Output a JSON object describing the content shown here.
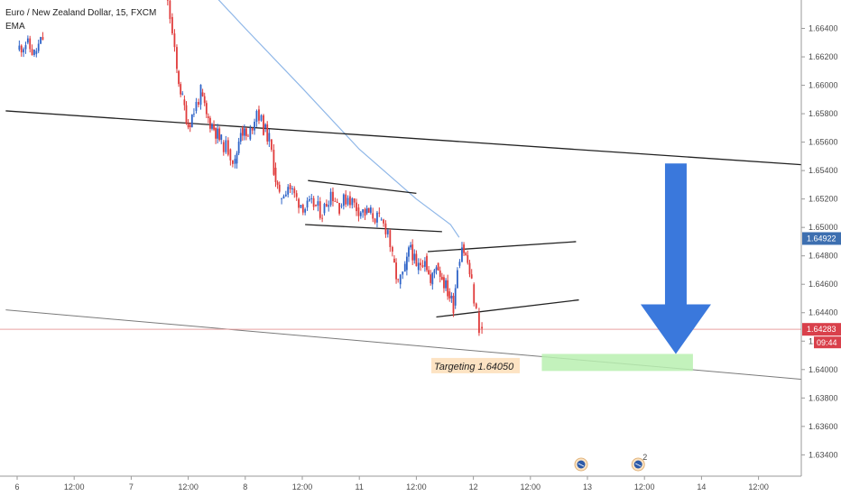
{
  "header": {
    "symbol_title": "Euro / New Zealand Dollar, 15, FXCM",
    "indicator_label": "EMA"
  },
  "colors": {
    "bull": "#2f64c8",
    "bear": "#e03b3b",
    "ema": "#8fb7e8",
    "price_badge": "#d9404b",
    "ema_badge": "#3d6fb0",
    "arrow": "#3a78dc",
    "target_zone": "#b8f0b0",
    "target_label_bg": "#fde3c3"
  },
  "annotation": {
    "target_label": "Targeting 1.64050"
  },
  "chart_data": {
    "type": "candlestick",
    "title": "Euro / New Zealand Dollar, 15, FXCM",
    "ylim": [
      1.6325,
      1.666
    ],
    "y_ticks": [
      "1.66400",
      "1.66200",
      "1.66000",
      "1.65800",
      "1.65600",
      "1.65400",
      "1.65200",
      "1.65000",
      "1.64800",
      "1.64600",
      "1.64400",
      "1.64200",
      "1.64000",
      "1.63800",
      "1.63600",
      "1.63400"
    ],
    "x_ticks": [
      "6",
      "12:00",
      "7",
      "12:00",
      "8",
      "12:00",
      "11",
      "12:00",
      "12",
      "12:00",
      "13",
      "12:00",
      "14",
      "12:00"
    ],
    "price_badge": {
      "value": 1.64283,
      "label": "1.64283",
      "countdown": "09:44"
    },
    "ema_badge": {
      "value": 1.64922,
      "label": "1.64922"
    },
    "ema_points": [
      [
        3,
        1.6683
      ],
      [
        4,
        1.664
      ],
      [
        5,
        1.6598
      ],
      [
        6,
        1.6555
      ],
      [
        7,
        1.652
      ],
      [
        7.6,
        1.6502
      ],
      [
        7.75,
        1.6493
      ]
    ],
    "close_path": [
      [
        0,
        1.6625
      ],
      [
        0.15,
        1.663
      ],
      [
        0.3,
        1.6622
      ],
      [
        0.45,
        1.6633
      ],
      [
        2.6,
        1.6665
      ],
      [
        2.68,
        1.6648
      ],
      [
        2.8,
        1.661
      ],
      [
        2.9,
        1.659
      ],
      [
        3.0,
        1.6572
      ],
      [
        3.1,
        1.6582
      ],
      [
        3.22,
        1.6595
      ],
      [
        3.32,
        1.6578
      ],
      [
        3.45,
        1.657
      ],
      [
        3.58,
        1.656
      ],
      [
        3.7,
        1.6555
      ],
      [
        3.82,
        1.6545
      ],
      [
        3.92,
        1.657
      ],
      [
        4.05,
        1.6562
      ],
      [
        4.2,
        1.6583
      ],
      [
        4.32,
        1.657
      ],
      [
        4.42,
        1.6562
      ],
      [
        4.5,
        1.6542
      ],
      [
        4.6,
        1.652
      ],
      [
        4.75,
        1.653
      ],
      [
        4.9,
        1.652
      ],
      [
        5.05,
        1.6514
      ],
      [
        5.2,
        1.6516
      ],
      [
        5.35,
        1.651
      ],
      [
        5.5,
        1.6525
      ],
      [
        5.65,
        1.6515
      ],
      [
        5.8,
        1.6522
      ],
      [
        5.95,
        1.6514
      ],
      [
        6.1,
        1.651
      ],
      [
        6.2,
        1.651
      ],
      [
        6.35,
        1.6505
      ],
      [
        6.5,
        1.6498
      ],
      [
        6.58,
        1.6478
      ],
      [
        6.68,
        1.646
      ],
      [
        6.8,
        1.647
      ],
      [
        6.9,
        1.6488
      ],
      [
        7.0,
        1.647
      ],
      [
        7.15,
        1.648
      ],
      [
        7.25,
        1.646
      ],
      [
        7.35,
        1.6475
      ],
      [
        7.45,
        1.6465
      ],
      [
        7.55,
        1.6455
      ],
      [
        7.65,
        1.6445
      ],
      [
        7.72,
        1.6473
      ],
      [
        7.8,
        1.6488
      ],
      [
        7.9,
        1.6475
      ],
      [
        7.97,
        1.646
      ],
      [
        8.05,
        1.644
      ],
      [
        8.1,
        1.643
      ],
      [
        8.15,
        1.6428
      ]
    ],
    "trendlines": [
      {
        "name": "upper-long-line",
        "points": [
          [
            -0.2,
            1.6582
          ],
          [
            13.8,
            1.6544
          ]
        ]
      },
      {
        "name": "lower-long-line",
        "points": [
          [
            -0.2,
            1.6442
          ],
          [
            13.8,
            1.6393
          ]
        ]
      },
      {
        "name": "pattern-line-1",
        "points": [
          [
            5.1,
            1.6533
          ],
          [
            7.0,
            1.6524
          ]
        ]
      },
      {
        "name": "pattern-line-2",
        "points": [
          [
            5.05,
            1.6502
          ],
          [
            7.45,
            1.6497
          ]
        ]
      },
      {
        "name": "pattern-line-3",
        "points": [
          [
            7.2,
            1.6483
          ],
          [
            9.8,
            1.649
          ]
        ]
      },
      {
        "name": "pattern-line-4",
        "points": [
          [
            7.35,
            1.6437
          ],
          [
            9.85,
            1.6449
          ]
        ]
      }
    ],
    "target_zone": {
      "x": [
        9.2,
        11.85
      ],
      "y": [
        1.6399,
        1.6411
      ]
    },
    "target": 1.6405,
    "arrow": {
      "x": 11.55,
      "from": 1.6545,
      "to": 1.6411
    },
    "events": [
      {
        "x": 10.0,
        "label": ""
      },
      {
        "x": 11.0,
        "label": "2"
      }
    ]
  }
}
